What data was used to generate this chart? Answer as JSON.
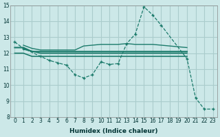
{
  "xlabel": "Humidex (Indice chaleur)",
  "bg_color": "#cce8e8",
  "grid_color": "#aacccc",
  "line_color": "#1a7a6a",
  "xlim": [
    -0.5,
    23.5
  ],
  "ylim": [
    8,
    15
  ],
  "yticks": [
    8,
    9,
    10,
    11,
    12,
    13,
    14,
    15
  ],
  "xticks": [
    0,
    1,
    2,
    3,
    4,
    5,
    6,
    7,
    8,
    9,
    10,
    11,
    12,
    13,
    14,
    15,
    16,
    17,
    18,
    19,
    20,
    21,
    22,
    23
  ],
  "line1_x": [
    0,
    1,
    3,
    4,
    5,
    6,
    7,
    8,
    9,
    10,
    11,
    12,
    13,
    14,
    15,
    16,
    17,
    20,
    21,
    22,
    23
  ],
  "line1_y": [
    12.7,
    12.3,
    11.8,
    11.55,
    11.4,
    11.25,
    10.65,
    10.45,
    10.65,
    11.45,
    11.3,
    11.35,
    12.6,
    13.2,
    14.9,
    14.4,
    13.75,
    11.65,
    9.2,
    8.5,
    8.5
  ],
  "line1_marker_x": [
    0,
    1,
    3,
    4,
    5,
    6,
    7,
    8,
    9,
    10,
    11,
    12,
    13,
    14,
    15,
    16,
    17,
    20,
    21,
    22,
    23
  ],
  "line1_marker_y": [
    12.7,
    12.3,
    11.8,
    11.55,
    11.4,
    11.25,
    10.65,
    10.45,
    10.65,
    11.45,
    11.3,
    11.35,
    12.6,
    13.2,
    14.9,
    14.4,
    13.75,
    11.65,
    9.2,
    8.5,
    8.5
  ],
  "line2_x": [
    1,
    3,
    20
  ],
  "line2_y": [
    12.25,
    12.0,
    12.0
  ],
  "line3_x": [
    0,
    1,
    2,
    3,
    4,
    5,
    6,
    7,
    8,
    9,
    10,
    11,
    12,
    13,
    14,
    15,
    16,
    17,
    18,
    19,
    20
  ],
  "line3_y": [
    12.0,
    12.0,
    11.8,
    11.8,
    11.8,
    11.8,
    11.8,
    11.8,
    11.8,
    11.8,
    11.8,
    11.8,
    11.8,
    11.8,
    11.8,
    11.8,
    11.8,
    11.8,
    11.8,
    11.8,
    11.8
  ],
  "line4_x": [
    0,
    1,
    2,
    3,
    4,
    5,
    6,
    7,
    8,
    9,
    10,
    11,
    12,
    13,
    14,
    15,
    16,
    17,
    18,
    19,
    20
  ],
  "line4_y": [
    12.35,
    12.35,
    12.1,
    12.1,
    12.1,
    12.1,
    12.1,
    12.1,
    12.1,
    12.1,
    12.1,
    12.1,
    12.1,
    12.1,
    12.1,
    12.1,
    12.1,
    12.1,
    12.1,
    12.1,
    12.1
  ],
  "line5_x": [
    1,
    2,
    3,
    4,
    5,
    6,
    7,
    8,
    9,
    10,
    11,
    12,
    13,
    14,
    15,
    16,
    17,
    18,
    19,
    20
  ],
  "line5_y": [
    12.5,
    12.3,
    12.2,
    12.2,
    12.2,
    12.2,
    12.2,
    12.45,
    12.5,
    12.55,
    12.55,
    12.55,
    12.6,
    12.55,
    12.55,
    12.55,
    12.5,
    12.45,
    12.4,
    12.35
  ]
}
